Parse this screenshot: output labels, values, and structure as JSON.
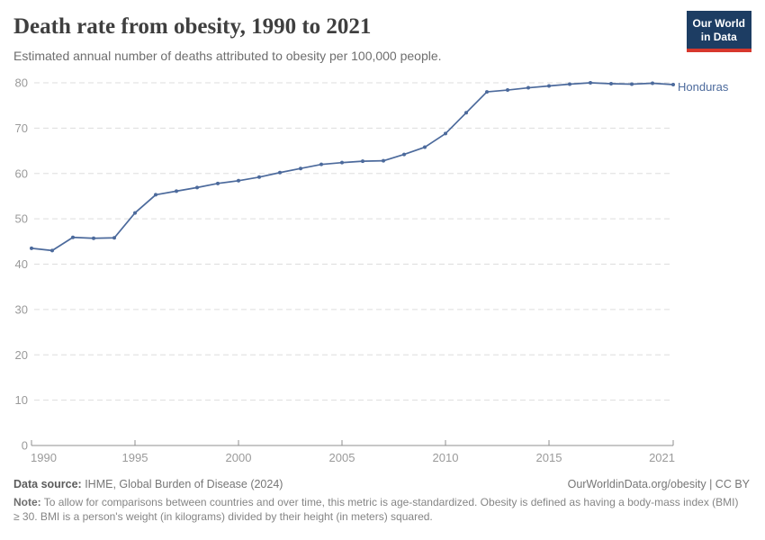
{
  "header": {
    "title": "Death rate from obesity, 1990 to 2021",
    "subtitle": "Estimated annual number of deaths attributed to obesity per 100,000 people.",
    "logo": {
      "line1": "Our World",
      "line2": "in Data"
    }
  },
  "chart_data": {
    "type": "line",
    "title": "Death rate from obesity, 1990 to 2021",
    "x": [
      1990,
      1991,
      1992,
      1993,
      1994,
      1995,
      1996,
      1997,
      1998,
      1999,
      2000,
      2001,
      2002,
      2003,
      2004,
      2005,
      2006,
      2007,
      2008,
      2009,
      2010,
      2011,
      2012,
      2013,
      2014,
      2015,
      2016,
      2017,
      2018,
      2019,
      2020,
      2021
    ],
    "series": [
      {
        "name": "Honduras",
        "color": "#4c6a9c",
        "values": [
          43.5,
          43.0,
          45.9,
          45.7,
          45.8,
          51.3,
          55.3,
          56.1,
          56.9,
          57.8,
          58.4,
          59.2,
          60.2,
          61.1,
          62.0,
          62.4,
          62.7,
          62.8,
          64.2,
          65.8,
          68.8,
          73.4,
          78.0,
          78.4,
          78.9,
          79.3,
          79.7,
          80.0,
          79.8,
          79.7,
          79.9,
          79.6
        ]
      }
    ],
    "xlabel": "",
    "ylabel": "",
    "xlim": [
      1990,
      2021
    ],
    "ylim": [
      0,
      80
    ],
    "xticks": [
      1990,
      1995,
      2000,
      2005,
      2010,
      2015,
      2021
    ],
    "yticks": [
      0,
      10,
      20,
      30,
      40,
      50,
      60,
      70,
      80
    ],
    "grid": "horizontal-dashed",
    "legend_position": "end-of-line-label"
  },
  "colors": {
    "line": "#4c6a9c",
    "grid": "#dddddd",
    "axis": "#8f8f8f",
    "tick_text": "#9a9a9a",
    "logo_bg": "#1d3d63",
    "logo_red": "#d7382d"
  },
  "footer": {
    "source_label": "Data source:",
    "source_value": " IHME, Global Burden of Disease (2024)",
    "link": "OurWorldinData.org/obesity | CC BY",
    "note_label": "Note:",
    "note_text": " To allow for comparisons between countries and over time, this metric is age-standardized. Obesity is defined as having a body-mass index (BMI) ≥ 30. BMI is a person's weight (in kilograms) divided by their height (in meters) squared."
  }
}
